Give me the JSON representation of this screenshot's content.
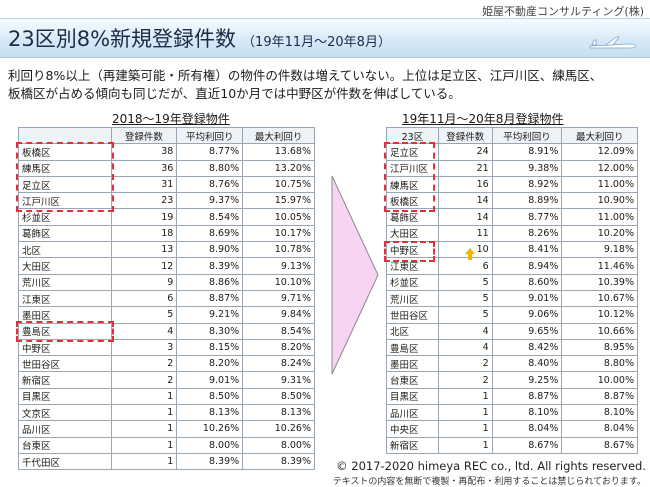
{
  "company": "姫屋不動産コンサルティング(株)",
  "title": "23区別8%新規登録件数",
  "title_sub": "（19年11月～20年8月）",
  "description": [
    "利回り8%以上（再建築可能・所有権）の物件の件数は増えていない。上位は足立区、江戸川区、練馬区、",
    "板橋区が占める傾向も同じだが、直近10か月では中野区が件数を伸ばしている。"
  ],
  "left_table": {
    "caption": "2018～19年登録物件",
    "headers": [
      "",
      "登録件数",
      "平均利回り",
      "最大利回り"
    ],
    "rows": [
      [
        "板橋区",
        "38",
        "8.77%",
        "13.68%"
      ],
      [
        "練馬区",
        "36",
        "8.80%",
        "13.20%"
      ],
      [
        "足立区",
        "31",
        "8.76%",
        "10.75%"
      ],
      [
        "江戸川区",
        "23",
        "9.37%",
        "15.97%"
      ],
      [
        "杉並区",
        "19",
        "8.54%",
        "10.05%"
      ],
      [
        "葛飾区",
        "18",
        "8.69%",
        "10.17%"
      ],
      [
        "北区",
        "13",
        "8.90%",
        "10.78%"
      ],
      [
        "大田区",
        "12",
        "8.39%",
        "9.13%"
      ],
      [
        "荒川区",
        "9",
        "8.86%",
        "10.10%"
      ],
      [
        "江東区",
        "6",
        "8.87%",
        "9.71%"
      ],
      [
        "墨田区",
        "5",
        "9.21%",
        "9.84%"
      ],
      [
        "豊島区",
        "4",
        "8.30%",
        "8.54%"
      ],
      [
        "中野区",
        "3",
        "8.15%",
        "8.20%"
      ],
      [
        "世田谷区",
        "2",
        "8.20%",
        "8.24%"
      ],
      [
        "新宿区",
        "2",
        "9.01%",
        "9.31%"
      ],
      [
        "目黒区",
        "1",
        "8.50%",
        "8.50%"
      ],
      [
        "文京区",
        "1",
        "8.13%",
        "8.13%"
      ],
      [
        "品川区",
        "1",
        "10.26%",
        "10.26%"
      ],
      [
        "台東区",
        "1",
        "8.00%",
        "8.00%"
      ],
      [
        "千代田区",
        "1",
        "8.39%",
        "8.39%"
      ]
    ]
  },
  "right_table": {
    "caption": "19年11月～20年8月登録物件",
    "headers": [
      "23区",
      "登録件数",
      "平均利回り",
      "最大利回り"
    ],
    "rows": [
      [
        "足立区",
        "24",
        "8.91%",
        "12.09%"
      ],
      [
        "江戸川区",
        "21",
        "9.38%",
        "12.00%"
      ],
      [
        "練馬区",
        "16",
        "8.92%",
        "11.00%"
      ],
      [
        "板橋区",
        "14",
        "8.89%",
        "10.90%"
      ],
      [
        "葛飾区",
        "14",
        "8.77%",
        "11.00%"
      ],
      [
        "大田区",
        "11",
        "8.26%",
        "10.20%"
      ],
      [
        "中野区",
        "10",
        "8.41%",
        "9.18%"
      ],
      [
        "江東区",
        "6",
        "8.94%",
        "11.46%"
      ],
      [
        "杉並区",
        "5",
        "8.60%",
        "10.39%"
      ],
      [
        "荒川区",
        "5",
        "9.01%",
        "10.67%"
      ],
      [
        "世田谷区",
        "5",
        "9.06%",
        "10.12%"
      ],
      [
        "北区",
        "4",
        "9.65%",
        "10.66%"
      ],
      [
        "豊島区",
        "4",
        "8.42%",
        "8.95%"
      ],
      [
        "墨田区",
        "2",
        "8.40%",
        "8.80%"
      ],
      [
        "台東区",
        "2",
        "9.25%",
        "10.00%"
      ],
      [
        "目黒区",
        "1",
        "8.87%",
        "8.87%"
      ],
      [
        "品川区",
        "1",
        "8.10%",
        "8.10%"
      ],
      [
        "中央区",
        "1",
        "8.04%",
        "8.04%"
      ],
      [
        "新宿区",
        "1",
        "8.67%",
        "8.67%"
      ]
    ]
  },
  "colors": {
    "highlight_border": "#e0303a",
    "arrow_fill": "#f6d4f2",
    "up_arrow": "#f0b400",
    "title_band": "#d5e8f7"
  },
  "icons": [
    "airplane-icon",
    "transition-arrow-icon",
    "up-arrow-icon"
  ],
  "copyright": "©  2017-2020 himeya REC co., ltd. All rights reserved.",
  "notice": "テキストの内容を無断で複製・再配布・利用することは禁じられております。"
}
